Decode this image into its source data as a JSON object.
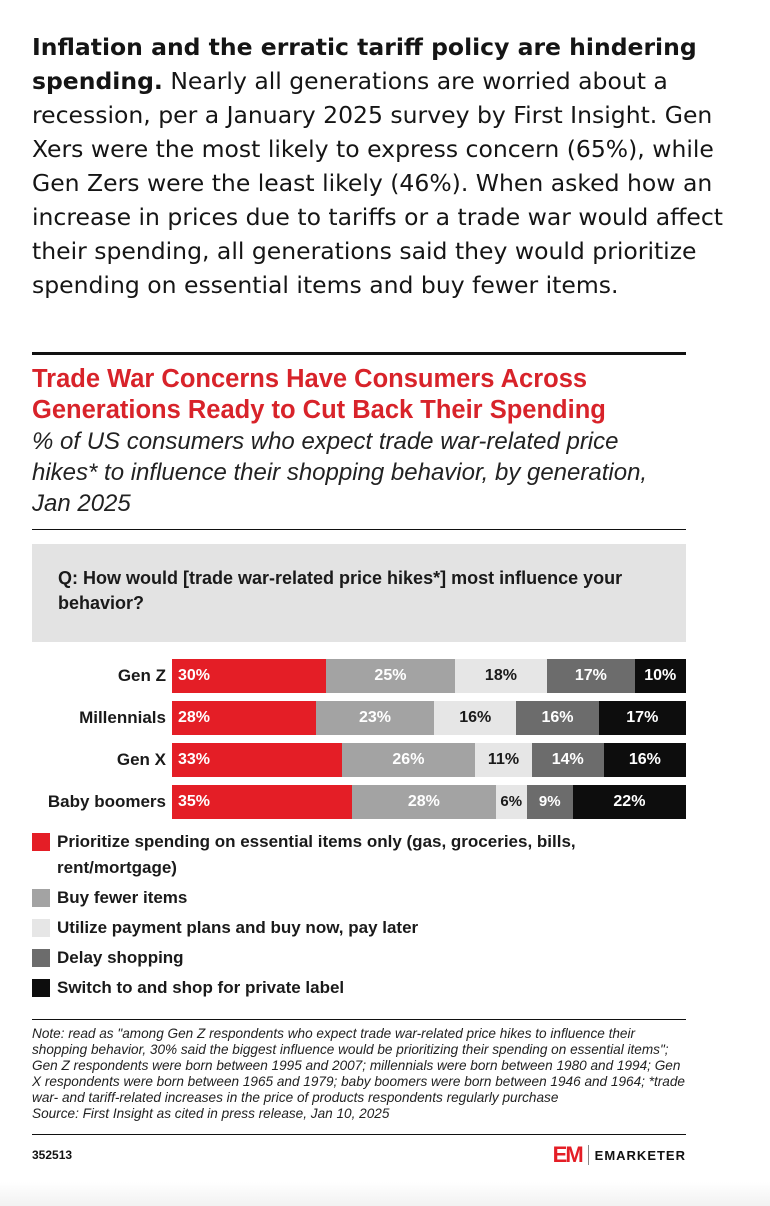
{
  "intro": {
    "bold": "Inflation and the erratic tariff policy are hindering spending.",
    "text": " Nearly all generations are worried about a recession, per a January 2025 survey by First Insight. Gen Xers were the most likely to express concern (65%), while Gen Zers were the least likely (46%). When asked how an increase in prices due to tariffs or a trade war would affect their spending, all generations said they would prioritize spending on essential items and buy fewer items."
  },
  "chart": {
    "title": "Trade War Concerns Have Consumers Across Generations Ready to Cut Back Their Spending",
    "subtitle": "% of US consumers who expect trade war-related price hikes* to influence their shopping behavior, by generation, Jan 2025",
    "question": "Q: How would [trade war-related price hikes*] most influence your behavior?",
    "note": "Note: read as \"among Gen Z respondents who expect trade war-related price hikes to influence their shopping behavior, 30% said the biggest influence would be prioritizing their spending on essential items\"; Gen Z respondents were born between 1995 and 2007; millennials were born between 1980 and 1994; Gen X respondents were born between 1965 and 1979; baby boomers were born between 1946 and 1964; *trade war- and tariff-related increases in the price of products respondents regularly purchase",
    "source": "Source: First Insight as cited in press release, Jan 10, 2025",
    "chart_id": "352513",
    "brand": {
      "mark": "EM",
      "name": "EMARKETER"
    }
  },
  "chart_data": {
    "type": "bar",
    "orientation": "horizontal",
    "stacked": true,
    "categories": [
      "Gen Z",
      "Millennials",
      "Gen X",
      "Baby boomers"
    ],
    "series": [
      {
        "name": "Prioritize spending on essential items only (gas, groceries, bills, rent/mortgage)",
        "color": "#e41e26",
        "values": [
          30,
          28,
          33,
          35
        ]
      },
      {
        "name": "Buy fewer items",
        "color": "#a3a3a3",
        "values": [
          25,
          23,
          26,
          28
        ]
      },
      {
        "name": "Utilize payment plans and buy now, pay later",
        "color": "#e6e6e6",
        "values": [
          18,
          16,
          11,
          6
        ]
      },
      {
        "name": "Delay shopping",
        "color": "#6c6c6c",
        "values": [
          17,
          16,
          14,
          9
        ]
      },
      {
        "name": "Switch to and shop for private label",
        "color": "#0d0d0d",
        "values": [
          10,
          17,
          16,
          22
        ]
      }
    ],
    "value_suffix": "%",
    "legend_position": "bottom"
  }
}
